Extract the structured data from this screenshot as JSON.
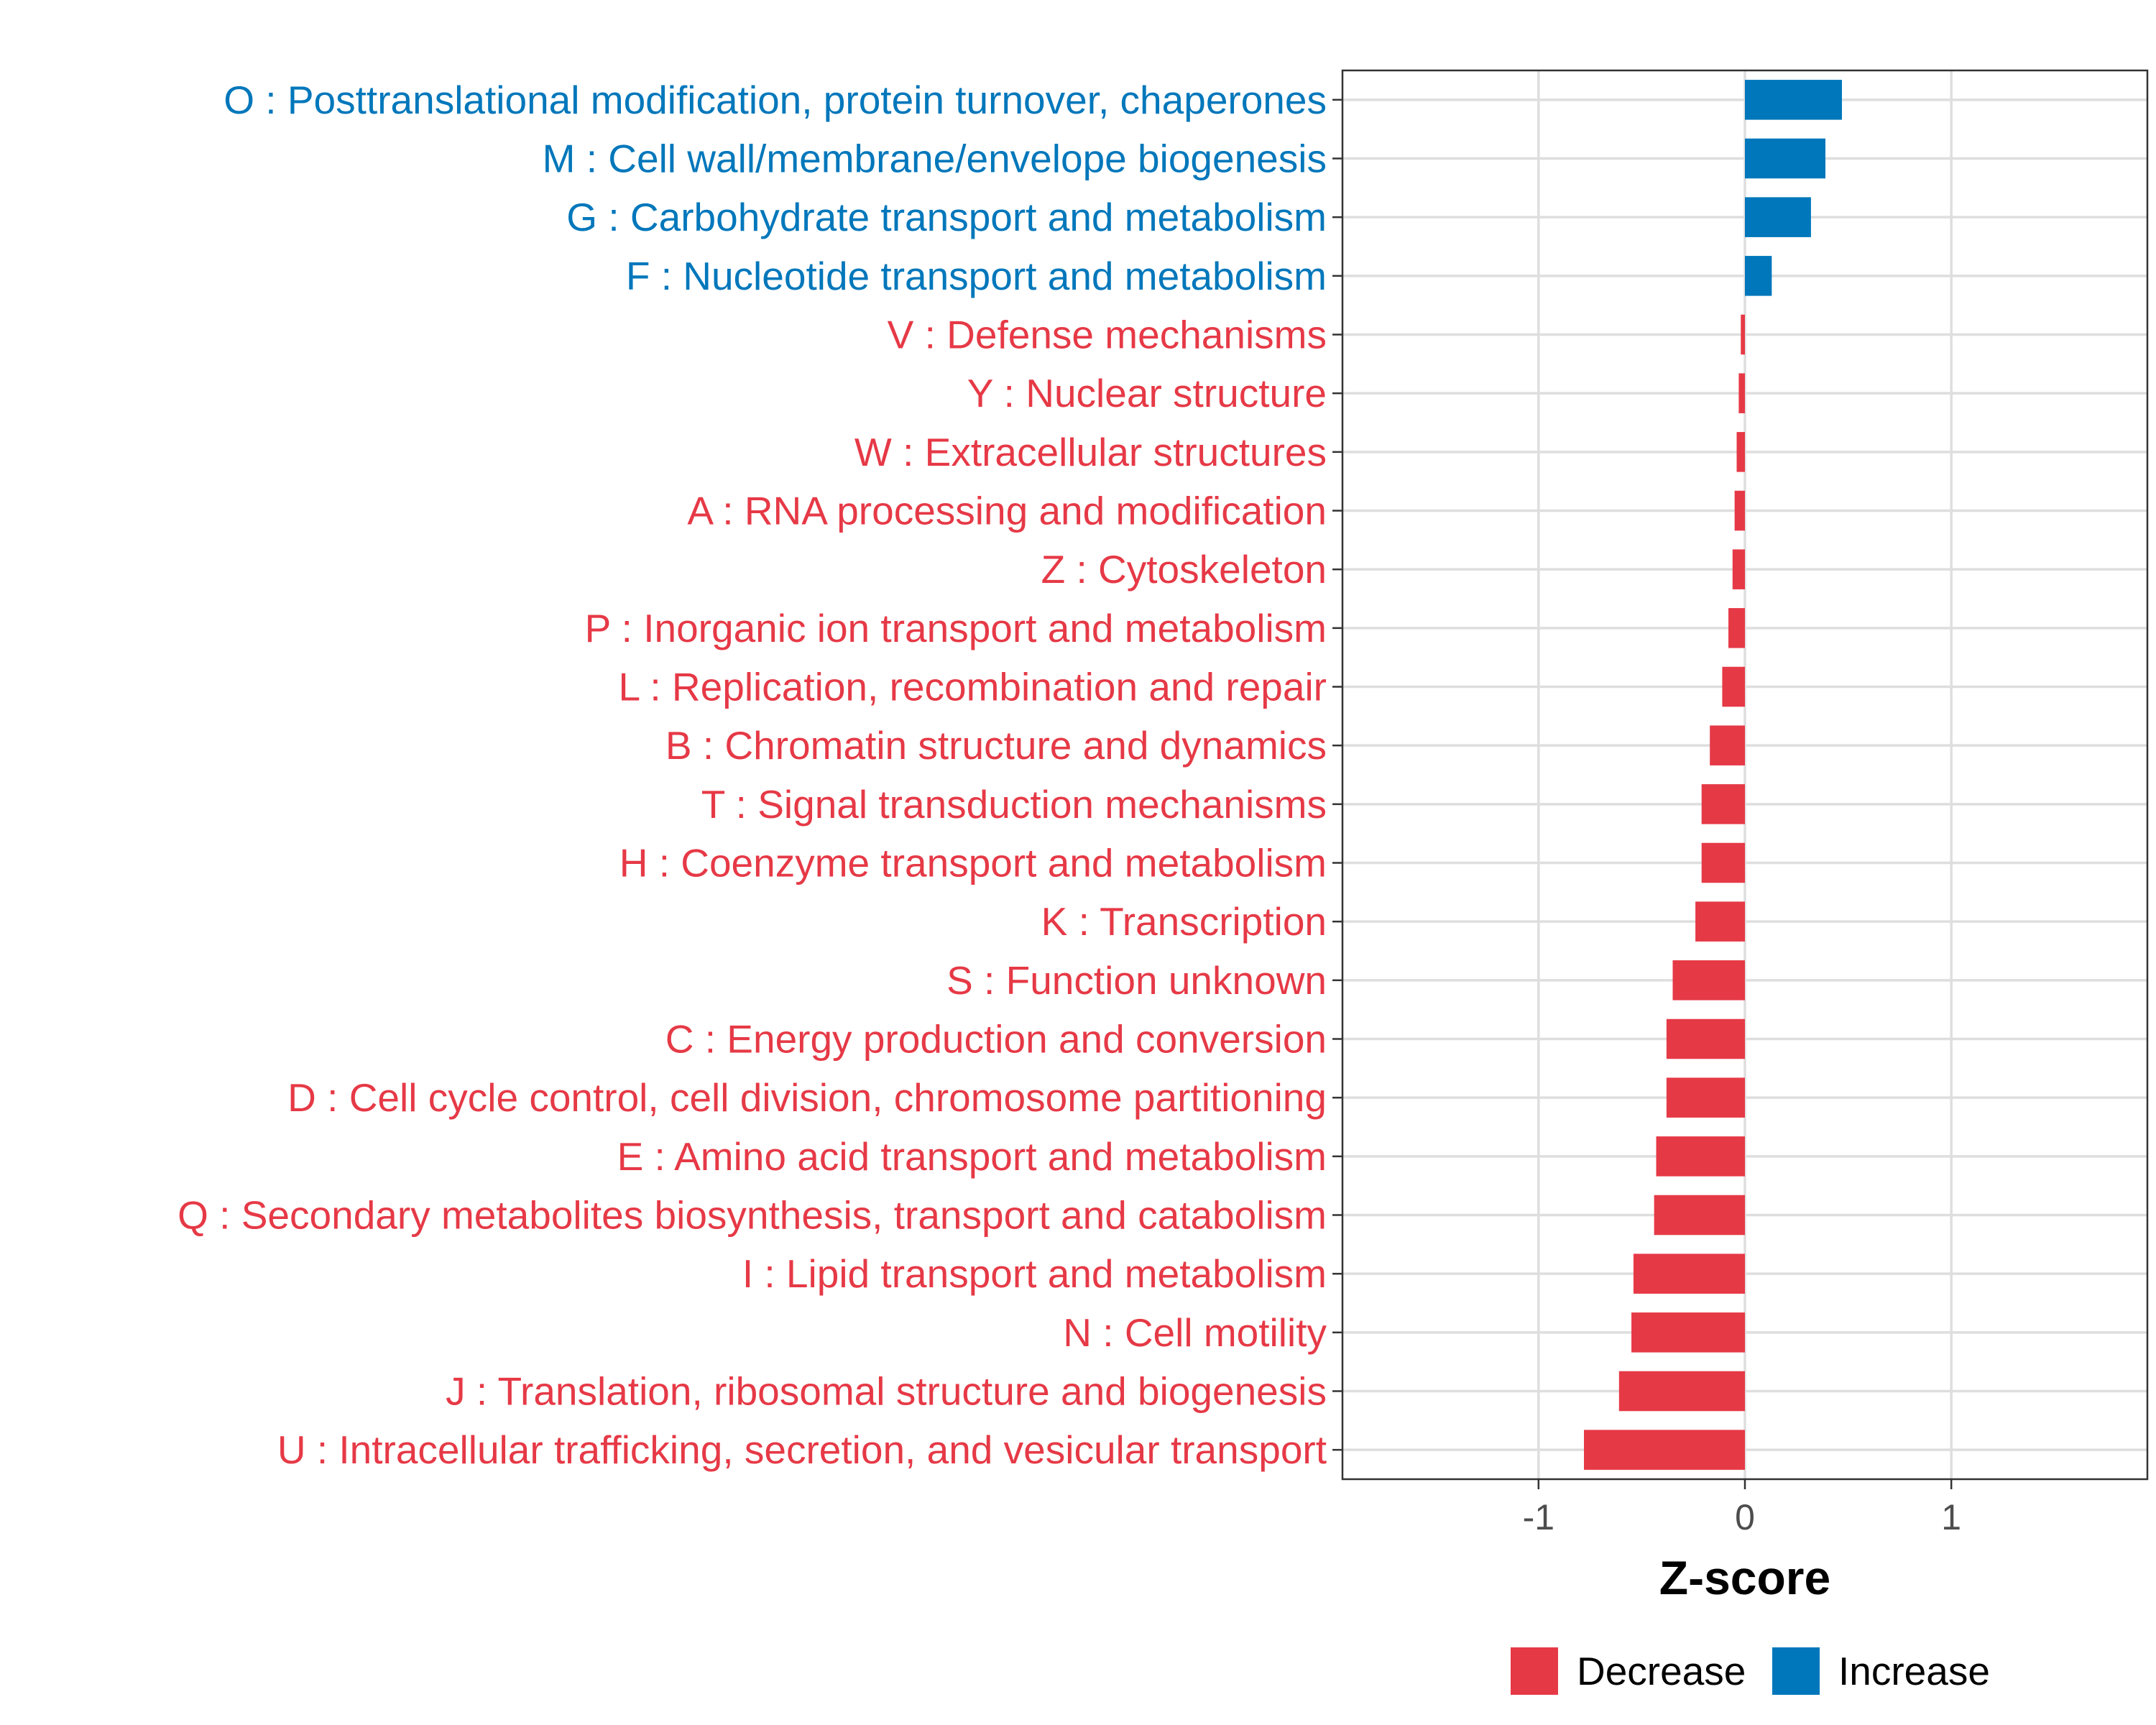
{
  "chart_data": {
    "type": "bar",
    "orientation": "horizontal",
    "xlabel": "Z-score",
    "xlim": [
      -1.95,
      1.95
    ],
    "x_ticks": [
      -1,
      0,
      1
    ],
    "x_tick_labels": [
      "-1",
      "0",
      "1"
    ],
    "grid": true,
    "colors": {
      "Decrease": "#e63946",
      "Increase": "#0077bb"
    },
    "legend": {
      "placement": "bottom",
      "entries": [
        "Decrease",
        "Increase"
      ]
    },
    "categories": [
      "O : Posttranslational modification, protein turnover, chaperones",
      "M : Cell wall/membrane/envelope biogenesis",
      "G : Carbohydrate transport and metabolism",
      "F : Nucleotide transport and metabolism",
      "V : Defense mechanisms",
      "Y : Nuclear structure",
      "W : Extracellular structures",
      "A : RNA processing and modification",
      "Z : Cytoskeleton",
      "P : Inorganic ion transport and metabolism",
      "L : Replication, recombination and repair",
      "B : Chromatin structure and dynamics",
      "T : Signal transduction mechanisms",
      "H : Coenzyme transport and metabolism",
      "K : Transcription",
      "S : Function unknown",
      "C : Energy production and conversion",
      "D : Cell cycle control, cell division, chromosome partitioning",
      "E : Amino acid transport and metabolism",
      "Q : Secondary metabolites biosynthesis, transport and catabolism",
      "I : Lipid transport and metabolism",
      "N : Cell motility",
      "J : Translation, ribosomal structure and biogenesis",
      "U : Intracellular trafficking, secretion, and vesicular transport"
    ],
    "values": [
      0.47,
      0.39,
      0.32,
      0.13,
      -0.02,
      -0.03,
      -0.04,
      -0.05,
      -0.06,
      -0.08,
      -0.11,
      -0.17,
      -0.21,
      -0.21,
      -0.24,
      -0.35,
      -0.38,
      -0.38,
      -0.43,
      -0.44,
      -0.54,
      -0.55,
      -0.61,
      -0.78
    ],
    "direction": [
      "Increase",
      "Increase",
      "Increase",
      "Increase",
      "Decrease",
      "Decrease",
      "Decrease",
      "Decrease",
      "Decrease",
      "Decrease",
      "Decrease",
      "Decrease",
      "Decrease",
      "Decrease",
      "Decrease",
      "Decrease",
      "Decrease",
      "Decrease",
      "Decrease",
      "Decrease",
      "Decrease",
      "Decrease",
      "Decrease",
      "Decrease"
    ]
  }
}
